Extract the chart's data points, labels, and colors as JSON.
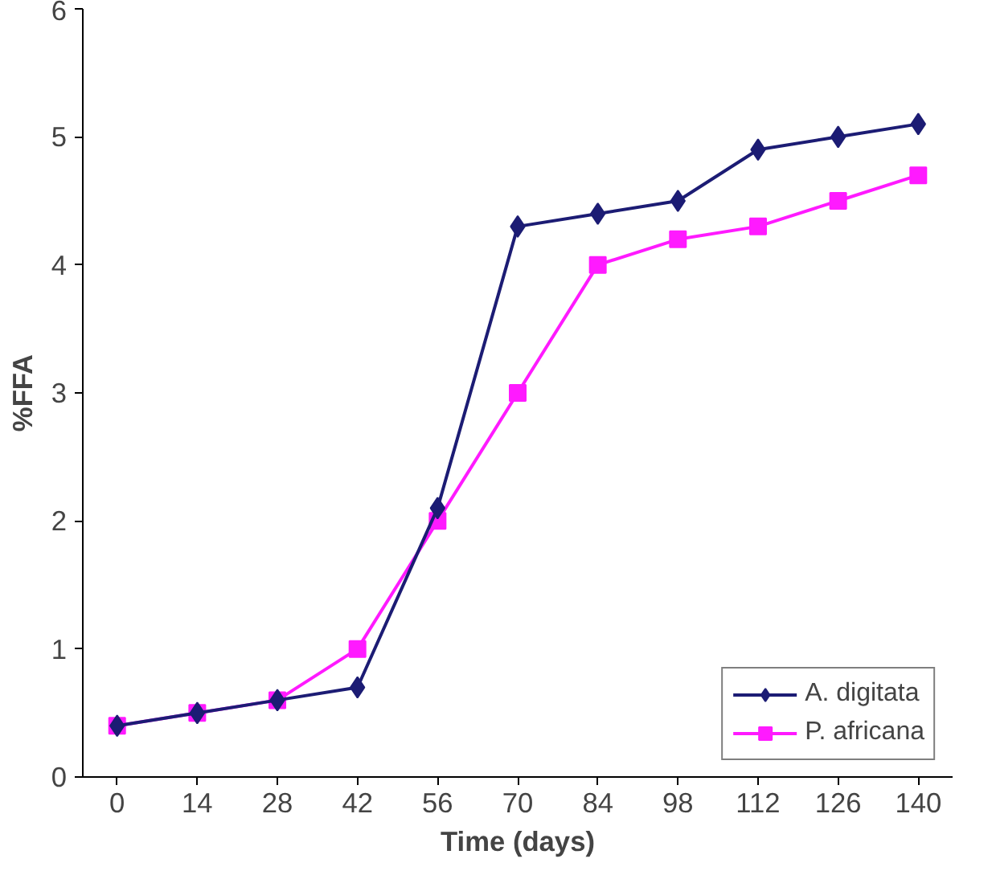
{
  "chart_data": {
    "type": "line",
    "xlabel": "Time (days)",
    "ylabel": "%FFA",
    "x": [
      0,
      14,
      28,
      42,
      56,
      70,
      84,
      98,
      112,
      126,
      140
    ],
    "series": [
      {
        "name": "A. digitata",
        "color": "#1c1c74",
        "marker": "diamond",
        "values": [
          0.4,
          0.5,
          0.6,
          0.7,
          2.1,
          4.3,
          4.4,
          4.5,
          4.9,
          5.0,
          5.1
        ]
      },
      {
        "name": "P. africana",
        "color": "#ff1aff",
        "marker": "square",
        "values": [
          0.4,
          0.5,
          0.6,
          1.0,
          2.0,
          3.0,
          4.0,
          4.2,
          4.3,
          4.5,
          4.7
        ]
      }
    ],
    "xlim": [
      -6,
      146
    ],
    "xticks": [
      0,
      14,
      28,
      42,
      56,
      70,
      84,
      98,
      112,
      126,
      140
    ],
    "ylim": [
      0,
      6
    ],
    "yticks": [
      0,
      1,
      2,
      3,
      4,
      5,
      6
    ],
    "grid": false,
    "legend": "bottom right",
    "line_style": "solid"
  }
}
